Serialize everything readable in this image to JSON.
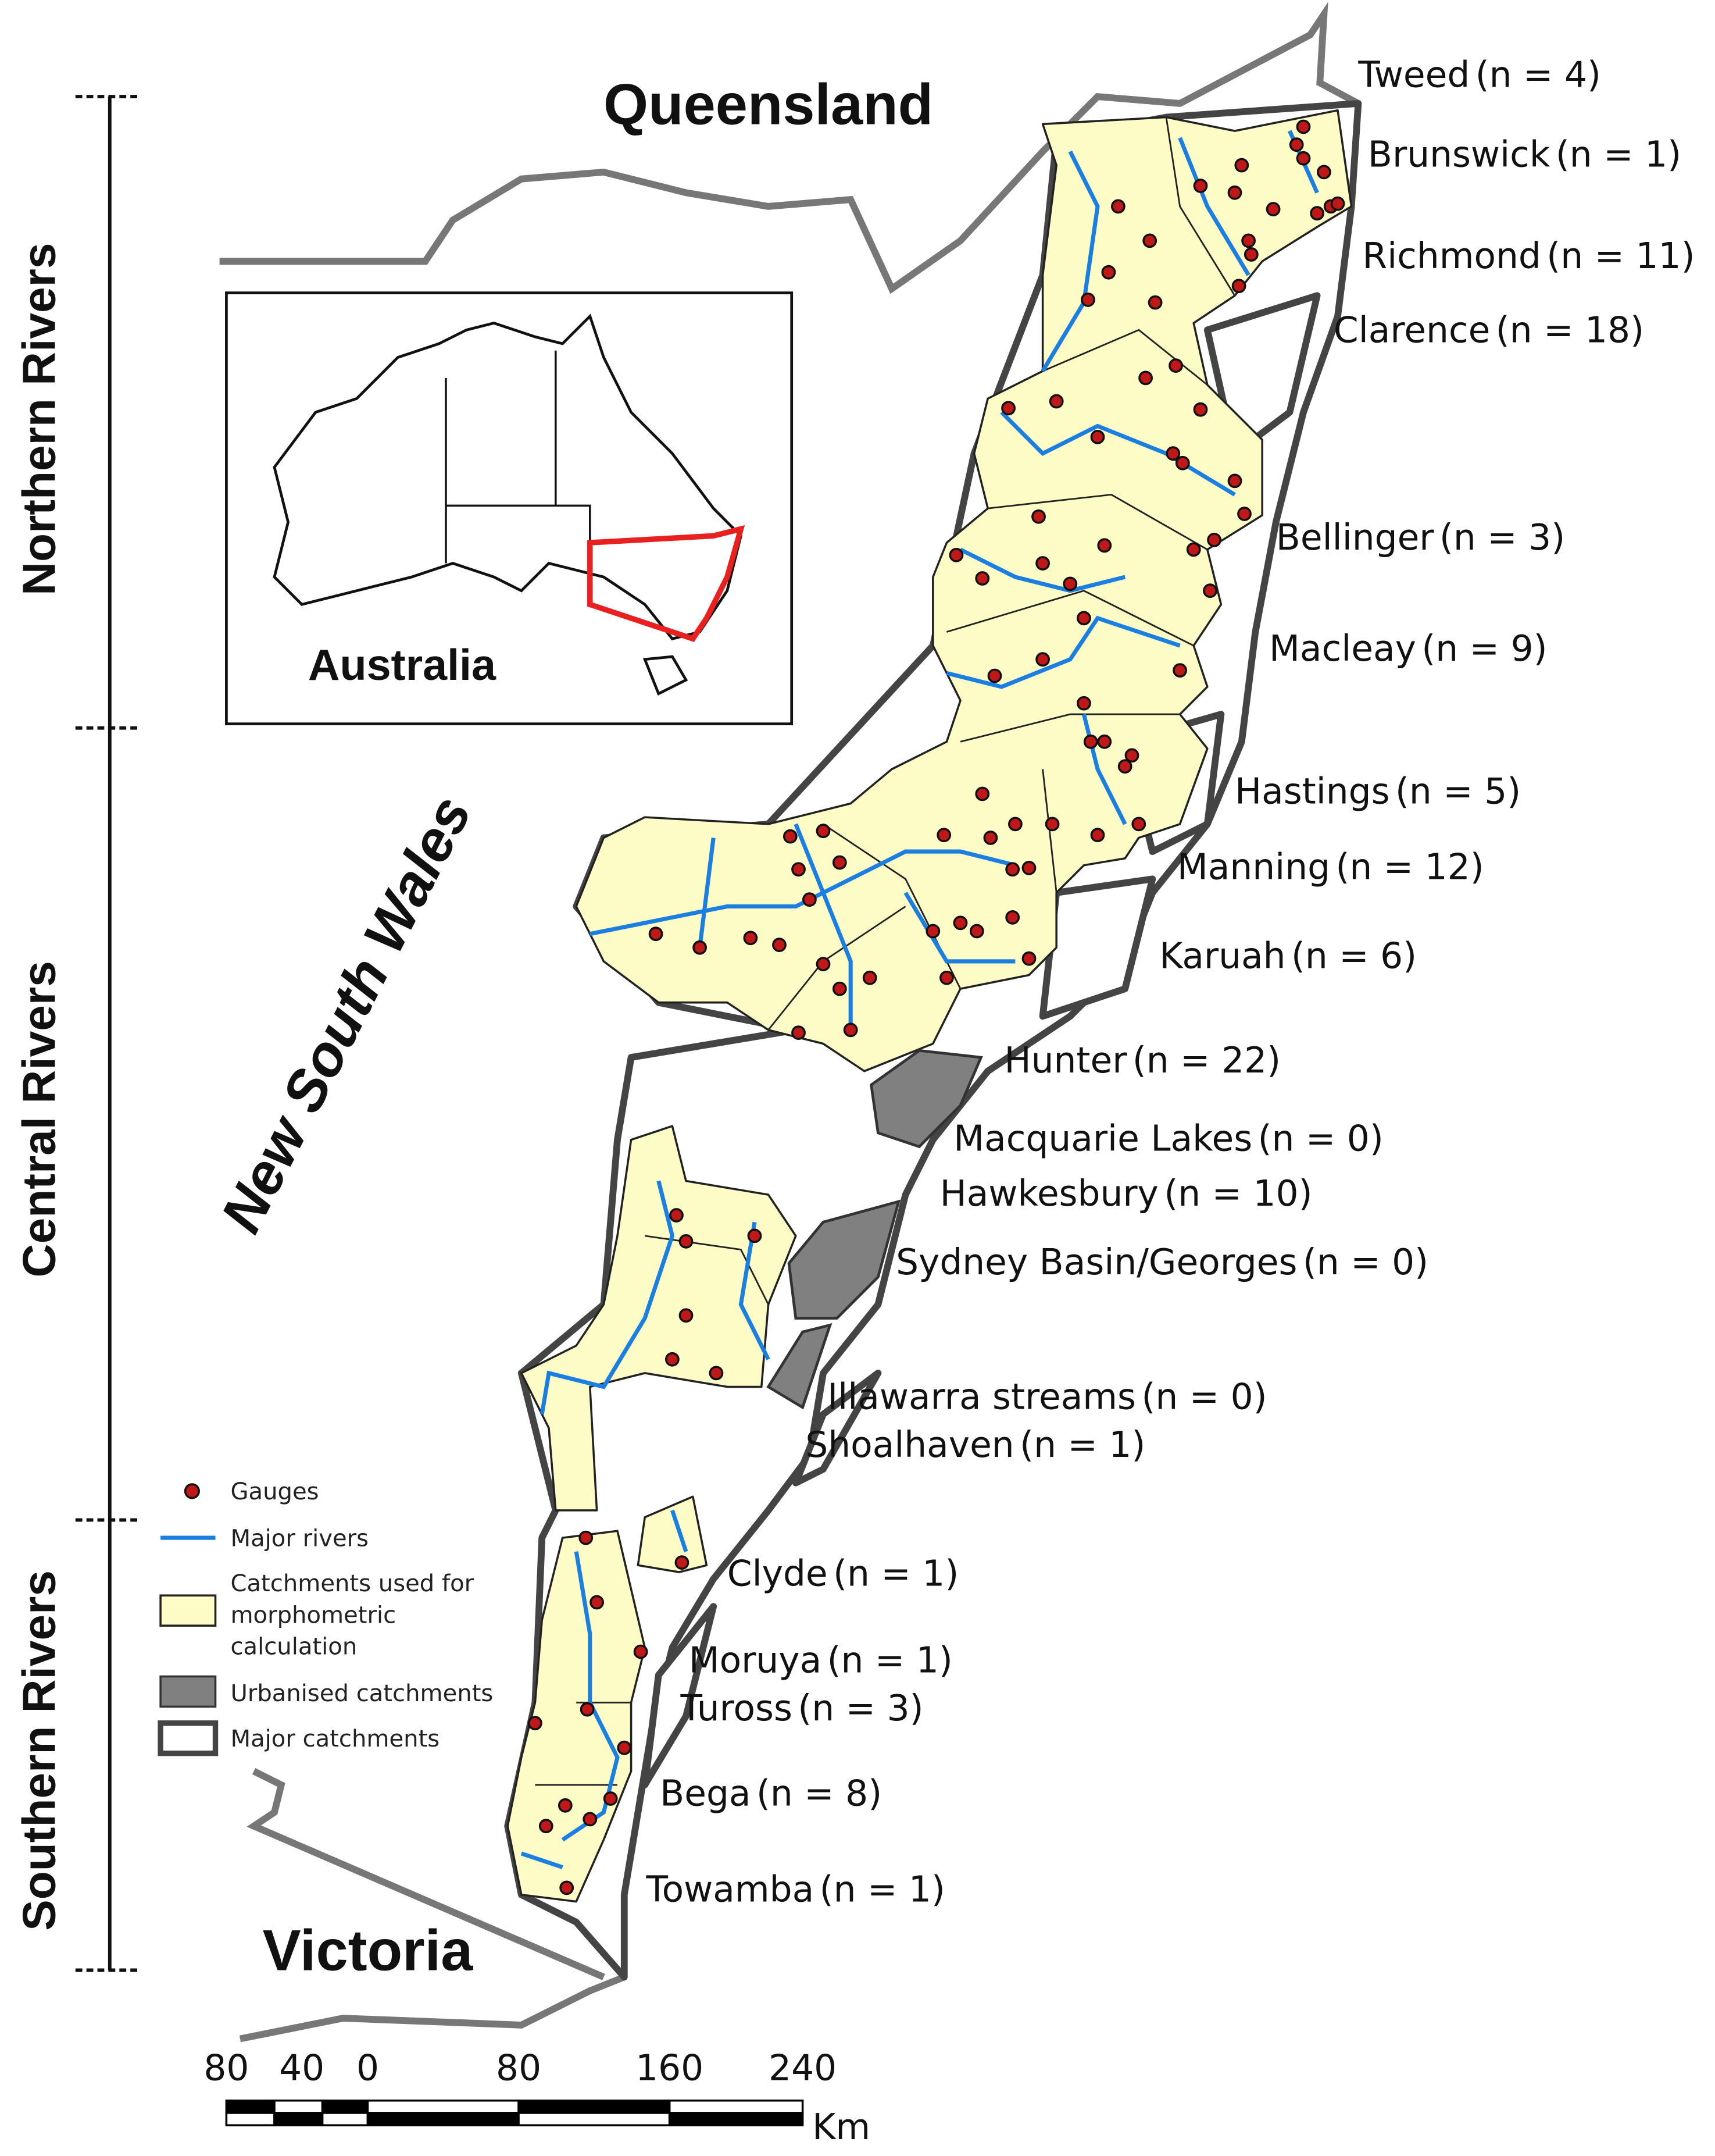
{
  "map": {
    "states": {
      "north": "Queensland",
      "middle": "New South Wales",
      "south": "Victoria"
    },
    "regions": [
      "Northern Rivers",
      "Central Rivers",
      "Southern Rivers"
    ],
    "inset_label": "Australia",
    "catchments": [
      {
        "name": "Tweed",
        "n_label": "(n = 4)"
      },
      {
        "name": "Brunswick",
        "n_label": "(n = 1)"
      },
      {
        "name": "Richmond",
        "n_label": "(n = 11)"
      },
      {
        "name": "Clarence",
        "n_label": "(n = 18)"
      },
      {
        "name": "Bellinger",
        "n_label": "(n = 3)"
      },
      {
        "name": "Macleay",
        "n_label": "(n = 9)"
      },
      {
        "name": "Hastings",
        "n_label": "(n = 5)"
      },
      {
        "name": "Manning",
        "n_label": "(n = 12)"
      },
      {
        "name": "Karuah",
        "n_label": "(n = 6)"
      },
      {
        "name": "Hunter",
        "n_label": "(n = 22)"
      },
      {
        "name": "Macquarie Lakes",
        "n_label": "(n = 0)"
      },
      {
        "name": "Hawkesbury",
        "n_label": "(n = 10)"
      },
      {
        "name": "Sydney Basin/Georges",
        "n_label": "(n = 0)"
      },
      {
        "name": "Illawarra streams",
        "n_label": "(n = 0)"
      },
      {
        "name": "Shoalhaven",
        "n_label": "(n = 1)"
      },
      {
        "name": "Clyde",
        "n_label": "(n = 1)"
      },
      {
        "name": "Moruya",
        "n_label": "(n = 1)"
      },
      {
        "name": "Tuross",
        "n_label": "(n = 3)"
      },
      {
        "name": "Bega",
        "n_label": "(n = 8)"
      },
      {
        "name": "Towamba",
        "n_label": "(n = 1)"
      }
    ],
    "legend": {
      "gauges": "Gauges",
      "rivers": "Major rivers",
      "used": [
        "Catchments used for",
        "morphometric",
        "calculation"
      ],
      "urban": "Urbanised catchments",
      "major": "Major catchments"
    },
    "scale_bar": {
      "ticks": [
        "80",
        "40",
        "0",
        "80",
        "160",
        "240"
      ],
      "unit": "Km"
    }
  }
}
